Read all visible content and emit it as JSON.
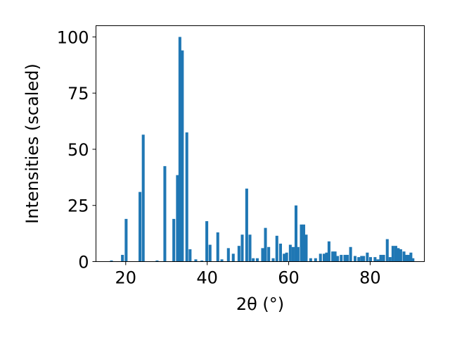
{
  "chart_data": {
    "type": "bar",
    "xlabel": "2θ (°)",
    "ylabel": "Intensities (scaled)",
    "xlim": [
      12.7,
      93.3
    ],
    "ylim": [
      0,
      105
    ],
    "xticks": [
      20,
      40,
      60,
      80
    ],
    "yticks": [
      0,
      25,
      50,
      75,
      100
    ],
    "grid": false,
    "bar_width": 0.7,
    "bar_color": "#1f77b4",
    "series": [
      {
        "x": [
          16.5,
          19.2,
          20.1,
          23.5,
          24.3,
          27.7,
          29.6,
          31.8,
          32.7,
          33.3,
          33.9,
          35.0,
          35.8,
          37.2,
          38.7,
          39.9,
          40.7,
          42.6,
          43.6,
          45.2,
          46.4,
          47.8,
          48.6,
          49.7,
          50.5,
          51.3,
          52.3,
          53.6,
          54.3,
          55.1,
          56.2,
          57.1,
          58.0,
          58.9,
          59.5,
          60.4,
          61.1,
          61.8,
          62.3,
          63.1,
          63.7,
          64.3,
          65.4,
          66.6,
          67.8,
          68.7,
          69.3,
          69.9,
          70.8,
          71.4,
          72.0,
          72.9,
          73.8,
          74.4,
          75.2,
          76.3,
          77.2,
          77.9,
          78.4,
          79.3,
          80.1,
          81.2,
          81.9,
          82.6,
          83.3,
          84.2,
          84.9,
          85.6,
          86.3,
          86.9,
          87.5,
          88.3,
          88.9,
          89.5,
          90.0,
          90.5
        ],
        "values": [
          0.5,
          3,
          19,
          31,
          56.5,
          0.5,
          42.5,
          19,
          38.5,
          100,
          94,
          57.5,
          5.5,
          1,
          0.5,
          18,
          7.5,
          13,
          1,
          6,
          3.5,
          7,
          12,
          32.5,
          12,
          1.5,
          1.5,
          6,
          15,
          6.5,
          1.5,
          11.5,
          8,
          3.5,
          4,
          7.5,
          6.5,
          25,
          6.5,
          16.5,
          16.5,
          12,
          1.5,
          1.5,
          3.5,
          3.5,
          4,
          9,
          4.5,
          4.5,
          2.5,
          3,
          3,
          3,
          6.5,
          2.5,
          2,
          2.5,
          2.5,
          4,
          2,
          2,
          1,
          3,
          3,
          10,
          2,
          7,
          7,
          6,
          5.5,
          4.5,
          3,
          3,
          4,
          1.5
        ]
      }
    ]
  }
}
